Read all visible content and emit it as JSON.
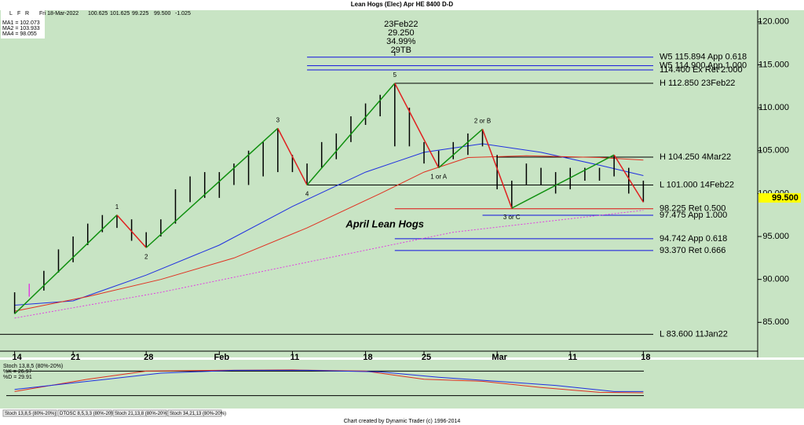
{
  "header": {
    "title": "Lean Hogs (Elec) Apr HE 8400 D-D",
    "icons": [
      "L",
      "F",
      "R"
    ],
    "info": [
      "Fri 18-Mar-2022",
      "100.625",
      "101.625",
      "99.225",
      "99.500",
      "-1.025"
    ]
  },
  "chart_data": [
    {
      "type": "ohlc",
      "note": "April Lean Hogs",
      "bar_color": "#000000",
      "highlight": {
        "index": 1,
        "color": "#e040e0"
      },
      "xlim": [
        -1,
        44
      ],
      "xticks": [
        {
          "value": 0,
          "label": "14"
        },
        {
          "value": 4,
          "label": "21"
        },
        {
          "value": 9,
          "label": "28"
        },
        {
          "value": 14,
          "label": "Feb"
        },
        {
          "value": 19,
          "label": "11"
        },
        {
          "value": 24,
          "label": "18"
        },
        {
          "value": 28,
          "label": "25"
        },
        {
          "value": 33,
          "label": "Mar"
        },
        {
          "value": 38,
          "label": "11"
        },
        {
          "value": 43,
          "label": "18"
        }
      ],
      "ylim": [
        83.2,
        120.9
      ],
      "yticks": [
        {
          "value": 85,
          "label": "85.000"
        },
        {
          "value": 90,
          "label": "90.000"
        },
        {
          "value": 95,
          "label": "95.000"
        },
        {
          "value": 100,
          "label": "100.000"
        },
        {
          "value": 105,
          "label": "105.000"
        },
        {
          "value": 110,
          "label": "110.000"
        },
        {
          "value": 115,
          "label": "115.000"
        },
        {
          "value": 120,
          "label": "120.000"
        }
      ],
      "high": [
        88.5,
        89.5,
        91,
        93.5,
        95,
        96.5,
        97.5,
        97.5,
        97,
        95.5,
        97,
        100.5,
        102,
        102.5,
        102.5,
        103.5,
        105,
        106,
        107.6,
        104.5,
        103.5,
        106,
        107,
        109,
        110.5,
        111.5,
        112.85,
        110,
        106,
        105,
        106,
        107,
        107.5,
        104.5,
        101.5,
        103.5,
        103,
        102.5,
        103,
        103,
        103,
        104.5,
        103,
        101.5
      ],
      "low": [
        86,
        88,
        88.7,
        90.8,
        92,
        94,
        95.5,
        96,
        94.5,
        93.7,
        95,
        96.5,
        99,
        99.5,
        99.5,
        101,
        101,
        102,
        102.5,
        102.5,
        101,
        103,
        104,
        106,
        108,
        109,
        105.5,
        105.5,
        103.5,
        103,
        104,
        104.5,
        105.5,
        100.5,
        98.3,
        101,
        101,
        100,
        100.5,
        101.5,
        101.5,
        102,
        100,
        99
      ],
      "last": {
        "value": 99.5,
        "label": "99.500",
        "color": "#ffff00"
      },
      "series": [
        {
          "name": "MA1 = 102.073",
          "color": "#2030e0",
          "dash": false,
          "x": [
            0,
            4,
            9,
            14,
            19,
            24,
            28,
            32,
            36,
            40,
            43
          ],
          "values": [
            87,
            87.5,
            90.5,
            94,
            98.5,
            102.5,
            104.8,
            105.8,
            104.8,
            103.3,
            102.1
          ]
        },
        {
          "name": "MA2 = 103.933",
          "color": "#e03020",
          "dash": false,
          "x": [
            0,
            5,
            10,
            15,
            20,
            25,
            28,
            31,
            35,
            40,
            43
          ],
          "values": [
            86.3,
            88,
            90,
            92.5,
            96,
            100,
            102.5,
            104.2,
            104.4,
            104.2,
            103.9
          ]
        },
        {
          "name": "MA4 = 98.055",
          "color": "#e040e0",
          "dash": true,
          "x": [
            0,
            10,
            20,
            30,
            43
          ],
          "values": [
            85.5,
            88.5,
            92,
            95.5,
            98.05
          ]
        }
      ],
      "swings": {
        "up_color": "#109010",
        "down_color": "#e02020",
        "x": [
          0,
          7,
          9,
          18,
          20,
          26,
          29,
          32,
          34,
          41,
          43
        ],
        "values": [
          86,
          97.5,
          93.7,
          107.6,
          101,
          112.85,
          103,
          107.5,
          98.3,
          104.5,
          99
        ],
        "labels": [
          null,
          "1",
          "2",
          "3",
          "4",
          "5",
          "1 or A",
          "2 or B",
          "3 or C",
          null,
          null
        ]
      },
      "annotation": {
        "x": 26,
        "lines": [
          "23Feb22",
          "29.250",
          "34.99%",
          "29TB"
        ]
      },
      "levels": [
        {
          "label": "W5 115.894 App 0.618",
          "value": 115.894,
          "color": "#1010e0",
          "start": 20
        },
        {
          "label": "W5 114.900 App 1.000",
          "value": 114.9,
          "color": "#1010e0",
          "start": 20
        },
        {
          "label": "114.400 Ex Ret 2.000",
          "value": 114.4,
          "color": "#1010e0",
          "start": 20
        },
        {
          "label": "H 112.850 23Feb22",
          "value": 112.85,
          "color": "#000000",
          "start": 26
        },
        {
          "label": "H 104.250 4Mar22",
          "value": 104.25,
          "color": "#000000",
          "start": 33
        },
        {
          "label": "L 101.000 14Feb22",
          "value": 101,
          "color": "#000000",
          "start": 20
        },
        {
          "label": "98.225 Ret 0.500",
          "value": 98.225,
          "color": "#e01010",
          "start": 26
        },
        {
          "label": "97.475 App 1.000",
          "value": 97.475,
          "color": "#1010e0",
          "start": 32
        },
        {
          "label": "94.742 App 0.618",
          "value": 94.742,
          "color": "#1010e0",
          "start": 26
        },
        {
          "label": "93.370 Ret 0.666",
          "value": 93.37,
          "color": "#1010e0",
          "start": 26
        },
        {
          "label": "L 83.600 11Jan22",
          "value": 83.6,
          "color": "#000000",
          "start": -1
        }
      ]
    },
    {
      "type": "line",
      "title": "Stoch 13,8,5 (80%-20%)",
      "xlim": [
        -1,
        44
      ],
      "ylim": [
        0,
        100
      ],
      "bands": [
        80,
        20
      ],
      "series": [
        {
          "name": "%K = 26.97",
          "color": "#e03020",
          "x": [
            0,
            5,
            9,
            14,
            19,
            24,
            28,
            32,
            36,
            40,
            43
          ],
          "values": [
            30,
            60,
            80,
            82,
            83,
            80,
            60,
            55,
            40,
            28,
            26.97
          ]
        },
        {
          "name": "%D = 29.91",
          "color": "#2030e0",
          "x": [
            0,
            5,
            10,
            15,
            20,
            25,
            29,
            33,
            37,
            41,
            43
          ],
          "values": [
            35,
            55,
            75,
            82,
            82,
            78,
            65,
            55,
            45,
            30,
            29.91
          ]
        }
      ]
    }
  ],
  "tabs": [
    "Stoch 13,8,5 (80%-20%)",
    "DTOSC 8,5,3,3 (80%-20%)",
    "Stoch 21,13,8 (80%-20%)",
    "Stoch 34,21,13 (80%-20%)"
  ],
  "footer": "Chart created by Dynamic Trader  (c) 1996-2014"
}
